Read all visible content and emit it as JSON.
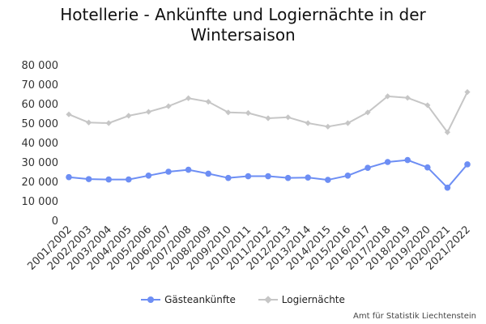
{
  "chart_data": {
    "type": "line",
    "title_line1": "Hotellerie - Ankünfte und Logiernächte in der",
    "title_line2": "Wintersaison",
    "categories": [
      "2001/2002",
      "2002/2003",
      "2003/2004",
      "2004/2005",
      "2005/2006",
      "2006/2007",
      "2007/2008",
      "2008/2009",
      "2009/2010",
      "2010/2011",
      "2011/2012",
      "2012/2013",
      "2013/2014",
      "2014/2015",
      "2015/2016",
      "2016/2017",
      "2017/2018",
      "2018/2019",
      "2019/2020",
      "2020/2021",
      "2021/2022"
    ],
    "series": [
      {
        "name": "Gästeankünfte",
        "color": "#6d8ef4",
        "marker": "circle",
        "values": [
          22200,
          21200,
          21000,
          21000,
          23000,
          25000,
          26000,
          24000,
          21800,
          22700,
          22700,
          21800,
          22000,
          20800,
          23000,
          27000,
          30000,
          31000,
          27200,
          16800,
          28800
        ]
      },
      {
        "name": "Logiernächte",
        "color": "#c6c6c6",
        "marker": "diamond",
        "values": [
          54500,
          50300,
          50000,
          53800,
          55800,
          58700,
          62800,
          61000,
          55500,
          55200,
          52500,
          53000,
          50000,
          48200,
          50000,
          55500,
          63800,
          63000,
          59200,
          45300,
          66000
        ]
      }
    ],
    "y_ticks": [
      "0",
      "10 000",
      "20 000",
      "30 000",
      "40 000",
      "50 000",
      "60 000",
      "70 000",
      "80 000"
    ],
    "ylim": [
      0,
      80000
    ],
    "grid": false,
    "legend_position": "bottom"
  },
  "source": "Amt für Statistik Liechtenstein"
}
